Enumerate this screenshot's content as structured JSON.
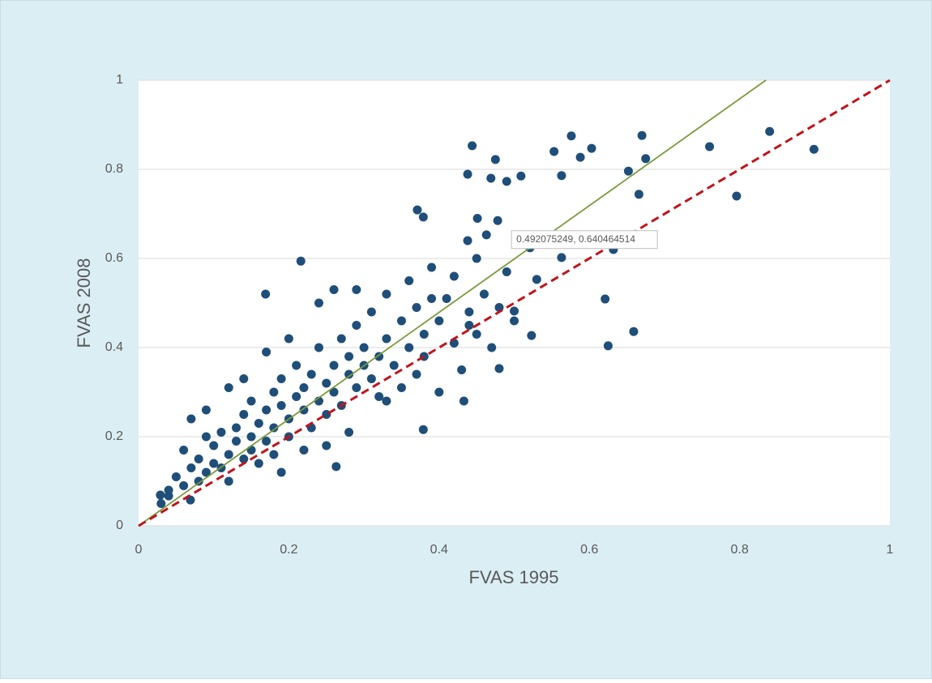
{
  "chart_data": {
    "type": "scatter",
    "xlabel": "FVAS 1995",
    "ylabel": "FVAS 2008",
    "xlim": [
      0,
      1
    ],
    "ylim": [
      0,
      1
    ],
    "xticks": [
      0,
      0.2,
      0.4,
      0.6,
      0.8,
      1
    ],
    "yticks": [
      0,
      0.2,
      0.4,
      0.6,
      0.8,
      1
    ],
    "xgrid": false,
    "ygrid": true,
    "series": [
      {
        "type": "scatter",
        "color": "#1f4e79",
        "x": [
          0.444,
          0.475,
          0.576,
          0.553,
          0.603,
          0.588,
          0.67,
          0.675,
          0.76,
          0.84,
          0.899,
          0.796,
          0.652,
          0.666,
          0.438,
          0.469,
          0.49,
          0.509,
          0.563,
          0.371,
          0.379,
          0.451,
          0.463,
          0.478,
          0.438,
          0.216,
          0.169,
          0.521,
          0.632,
          0.563,
          0.621,
          0.625,
          0.659,
          0.523,
          0.379,
          0.263,
          0.04,
          0.029,
          0.069,
          0.433,
          0.48,
          0.5,
          0.53,
          0.05,
          0.06,
          0.07,
          0.08,
          0.08,
          0.09,
          0.1,
          0.1,
          0.11,
          0.11,
          0.12,
          0.12,
          0.13,
          0.13,
          0.14,
          0.14,
          0.15,
          0.15,
          0.15,
          0.16,
          0.16,
          0.17,
          0.17,
          0.18,
          0.18,
          0.18,
          0.19,
          0.19,
          0.2,
          0.2,
          0.21,
          0.21,
          0.22,
          0.22,
          0.23,
          0.23,
          0.24,
          0.24,
          0.25,
          0.25,
          0.26,
          0.26,
          0.27,
          0.27,
          0.28,
          0.28,
          0.29,
          0.29,
          0.3,
          0.3,
          0.31,
          0.31,
          0.32,
          0.32,
          0.33,
          0.33,
          0.34,
          0.35,
          0.35,
          0.36,
          0.36,
          0.37,
          0.37,
          0.38,
          0.38,
          0.39,
          0.4,
          0.4,
          0.41,
          0.42,
          0.42,
          0.43,
          0.44,
          0.45,
          0.45,
          0.46,
          0.47,
          0.48,
          0.49,
          0.5,
          0.03,
          0.04,
          0.06,
          0.07,
          0.09,
          0.12,
          0.14,
          0.17,
          0.2,
          0.24,
          0.26,
          0.29,
          0.09,
          0.19,
          0.22,
          0.28,
          0.25,
          0.33,
          0.44,
          0.39
        ],
        "values": [
          0.853,
          0.822,
          0.875,
          0.84,
          0.847,
          0.827,
          0.876,
          0.824,
          0.851,
          0.885,
          0.845,
          0.74,
          0.796,
          0.744,
          0.789,
          0.78,
          0.773,
          0.785,
          0.786,
          0.709,
          0.693,
          0.69,
          0.653,
          0.685,
          0.64,
          0.594,
          0.52,
          0.624,
          0.62,
          0.602,
          0.509,
          0.404,
          0.436,
          0.427,
          0.216,
          0.133,
          0.067,
          0.069,
          0.058,
          0.28,
          0.353,
          0.482,
          0.553,
          0.11,
          0.09,
          0.13,
          0.1,
          0.15,
          0.12,
          0.14,
          0.18,
          0.13,
          0.21,
          0.16,
          0.1,
          0.19,
          0.22,
          0.15,
          0.25,
          0.2,
          0.17,
          0.28,
          0.23,
          0.14,
          0.26,
          0.19,
          0.3,
          0.22,
          0.16,
          0.27,
          0.33,
          0.24,
          0.2,
          0.29,
          0.36,
          0.26,
          0.31,
          0.22,
          0.34,
          0.28,
          0.4,
          0.32,
          0.25,
          0.36,
          0.3,
          0.42,
          0.27,
          0.34,
          0.38,
          0.31,
          0.45,
          0.36,
          0.4,
          0.33,
          0.48,
          0.38,
          0.29,
          0.42,
          0.52,
          0.36,
          0.46,
          0.31,
          0.4,
          0.55,
          0.34,
          0.49,
          0.43,
          0.38,
          0.58,
          0.46,
          0.3,
          0.51,
          0.41,
          0.56,
          0.35,
          0.48,
          0.43,
          0.6,
          0.52,
          0.4,
          0.49,
          0.57,
          0.46,
          0.05,
          0.08,
          0.17,
          0.24,
          0.2,
          0.31,
          0.33,
          0.39,
          0.42,
          0.5,
          0.53,
          0.53,
          0.26,
          0.12,
          0.17,
          0.21,
          0.18,
          0.28,
          0.45,
          0.51
        ]
      },
      {
        "type": "line",
        "color": "#7a9a3a",
        "x": [
          0,
          0.835
        ],
        "values": [
          0,
          1
        ]
      },
      {
        "type": "line",
        "color": "#c0141c",
        "dashed": true,
        "x": [
          0,
          1
        ],
        "values": [
          0,
          1
        ]
      }
    ],
    "annotations": [
      {
        "text": "0.492075249,  0.640464514",
        "x": 0.492075249,
        "y": 0.640464514
      }
    ]
  }
}
